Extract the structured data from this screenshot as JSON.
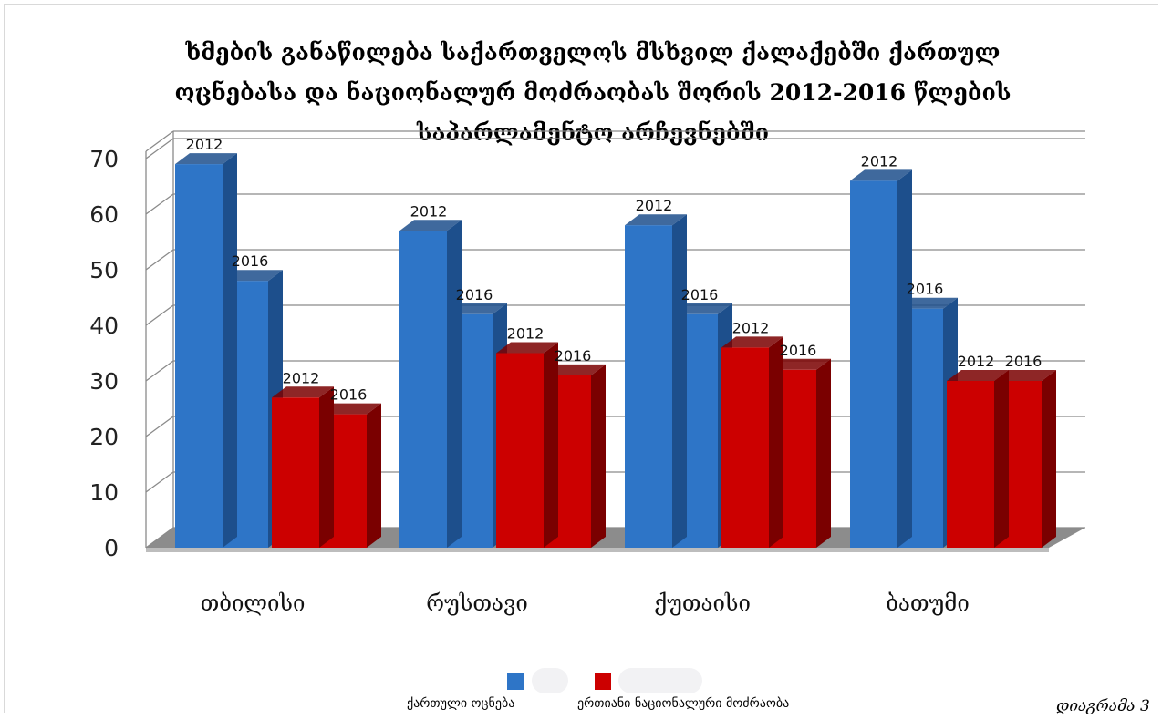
{
  "chart_data": {
    "type": "bar",
    "title": "ხმების განაწილება საქართველოს მსხვილ ქალაქებში ქართულ ოცნებასა და ნაციონალურ მოძრაობას შორის 2012-2016 წლების საპარლამენტო არჩევნებში",
    "categories": [
      "თბილისი",
      "რუსთავი",
      "ქუთაისი",
      "ბათუმი"
    ],
    "series": [
      {
        "name": "ქართული ოცნება",
        "color": "#2e75c7",
        "dark": "#1d4f8c",
        "years": [
          "2012",
          "2016"
        ],
        "values": [
          [
            69,
            48
          ],
          [
            57,
            42
          ],
          [
            58,
            42
          ],
          [
            66,
            43
          ]
        ]
      },
      {
        "name": "ერთიანი ნაციონალური მოძრაობა",
        "color": "#cc0000",
        "dark": "#7a0000",
        "years": [
          "2012",
          "2016"
        ],
        "values": [
          [
            27,
            24
          ],
          [
            35,
            31
          ],
          [
            36,
            32
          ],
          [
            30,
            30
          ]
        ]
      }
    ],
    "yticks": [
      0,
      10,
      20,
      30,
      40,
      50,
      60,
      70
    ],
    "ylim": [
      0,
      70
    ],
    "grid": true,
    "three_d": true,
    "legend_position": "bottom"
  },
  "caption": "დიაგრამა 3"
}
